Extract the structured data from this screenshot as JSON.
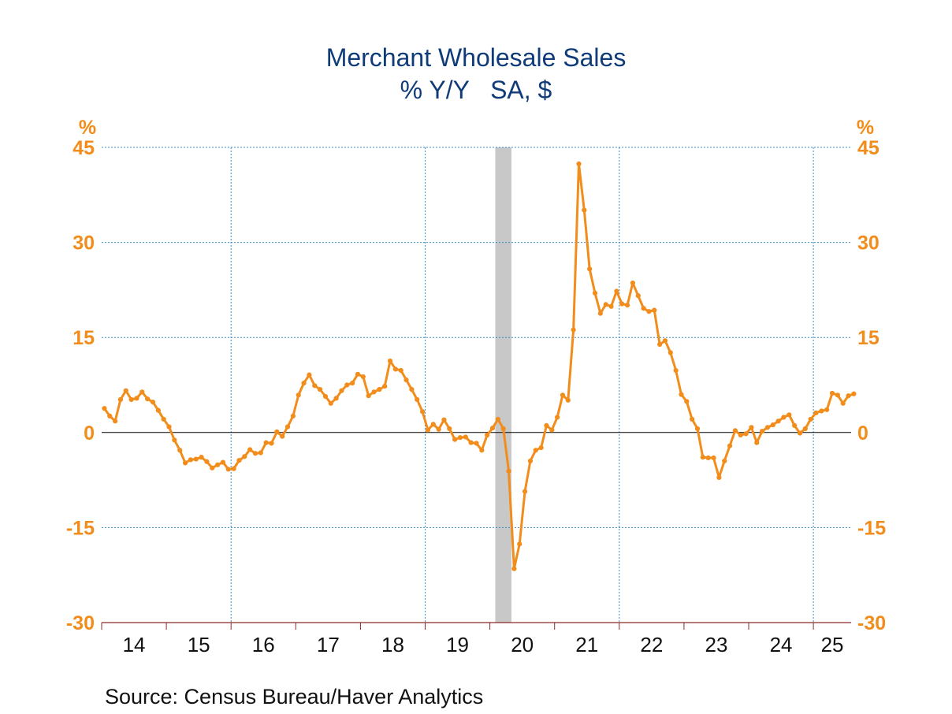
{
  "chart_data": {
    "type": "line",
    "title": "Merchant Wholesale Sales",
    "subtitle": "% Y/Y   SA, $",
    "y_unit_left": "%",
    "y_unit_right": "%",
    "ylim": [
      -30,
      45
    ],
    "y_ticks": [
      "45",
      "30",
      "15",
      "0",
      "-15",
      "-30"
    ],
    "y_tick_values": [
      45,
      30,
      15,
      0,
      -15,
      -30
    ],
    "x_tick_labels": [
      "14",
      "15",
      "16",
      "17",
      "18",
      "19",
      "20",
      "21",
      "22",
      "23",
      "24",
      "25"
    ],
    "x_start": "2014-01",
    "x_end": "2025-07",
    "grid": true,
    "recession_shading": [
      {
        "start": "2020-02",
        "end": "2020-04"
      }
    ],
    "series": [
      {
        "color": "#f28c1a",
        "values": [
          3.8,
          2.6,
          1.8,
          5.2,
          6.6,
          5.2,
          5.4,
          6.4,
          5.3,
          4.8,
          3.5,
          2.1,
          0.9,
          -1.2,
          -2.8,
          -4.8,
          -4.3,
          -4.2,
          -3.9,
          -4.6,
          -5.6,
          -5.1,
          -4.7,
          -5.8,
          -5.7,
          -4.4,
          -3.8,
          -2.7,
          -3.3,
          -3.2,
          -1.6,
          -1.7,
          0.1,
          -0.6,
          0.9,
          2.6,
          5.9,
          7.8,
          9.1,
          7.4,
          6.8,
          5.7,
          4.6,
          5.4,
          6.6,
          7.5,
          7.8,
          9.2,
          8.8,
          5.8,
          6.4,
          6.8,
          7.3,
          11.3,
          10.0,
          9.8,
          8.3,
          6.8,
          5.2,
          3.3,
          0.4,
          1.3,
          0.5,
          2.0,
          0.6,
          -1.1,
          -0.8,
          -0.7,
          -1.6,
          -1.7,
          -2.8,
          -0.4,
          0.7,
          2.1,
          0.6,
          -6.1,
          -21.5,
          -17.6,
          -9.3,
          -4.5,
          -2.8,
          -2.4,
          1.1,
          0.4,
          2.4,
          5.9,
          5.1,
          16.2,
          42.4,
          35.1,
          25.8,
          22.0,
          18.8,
          20.2,
          19.9,
          22.3,
          20.3,
          20.1,
          23.6,
          21.6,
          19.6,
          19.1,
          19.3,
          13.9,
          14.5,
          12.6,
          9.8,
          6.0,
          4.9,
          2.1,
          0.6,
          -3.9,
          -4.0,
          -4.0,
          -7.1,
          -4.5,
          -2.1,
          0.3,
          -0.4,
          -0.2,
          0.8,
          -1.6,
          0.2,
          0.8,
          1.2,
          1.8,
          2.4,
          2.8,
          1.1,
          -0.1,
          0.6,
          2.1,
          3.1,
          3.4,
          3.6,
          6.2,
          5.9,
          4.6,
          5.8,
          6.1
        ]
      }
    ]
  },
  "source": "Source:  Census Bureau/Haver Analytics"
}
